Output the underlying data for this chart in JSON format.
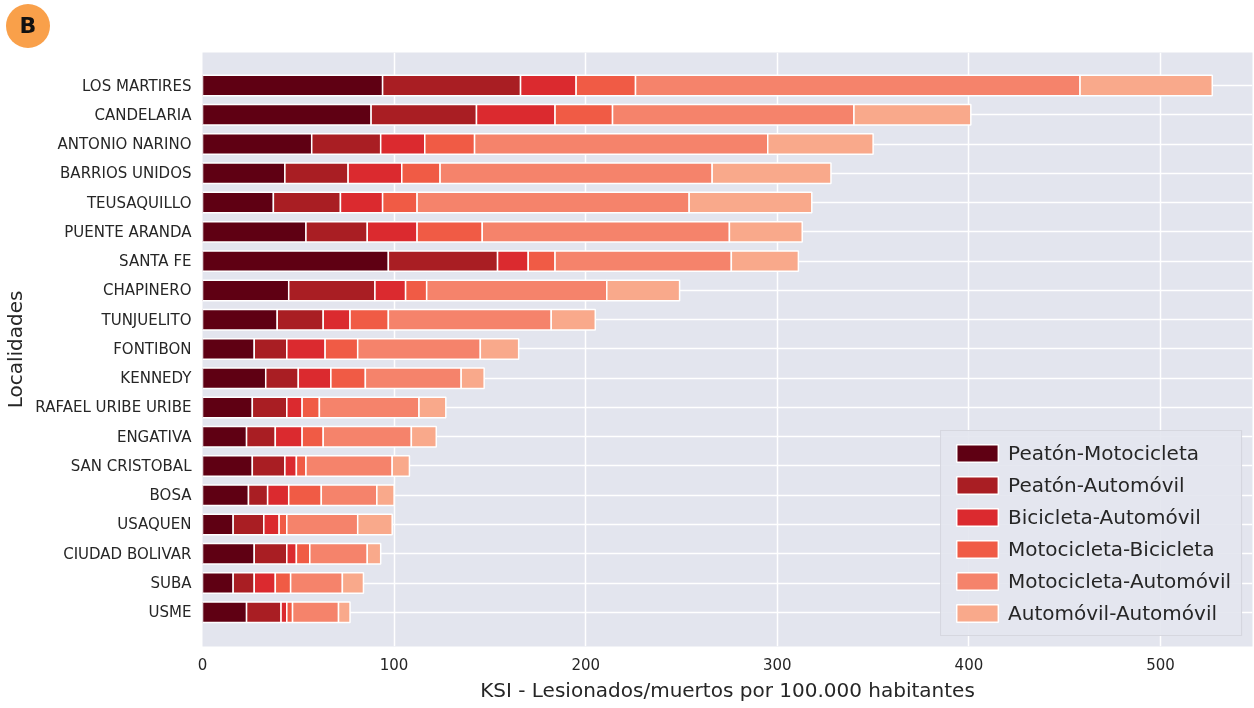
{
  "chart_data": {
    "type": "bar",
    "orientation": "horizontal",
    "stacked": true,
    "xlabel": "KSI - Lesionados/muertos por 100.000 habitantes",
    "ylabel": "Localidades",
    "annotations": [
      "B"
    ],
    "categories": [
      "LOS MARTIRES",
      "CANDELARIA",
      "ANTONIO NARINO",
      "BARRIOS UNIDOS",
      "TEUSAQUILLO",
      "PUENTE ARANDA",
      "SANTA FE",
      "CHAPINERO",
      "TUNJUELITO",
      "FONTIBON",
      "KENNEDY",
      "RAFAEL URIBE URIBE",
      "ENGATIVA",
      "SAN CRISTOBAL",
      "BOSA",
      "USAQUEN",
      "CIUDAD BOLIVAR",
      "SUBA",
      "USME"
    ],
    "series": [
      {
        "name": "Peatón-Motocicleta",
        "color": "#5f0013",
        "values": [
          94,
          88,
          57,
          43,
          37,
          54,
          97,
          45,
          39,
          27,
          33,
          26,
          23,
          26,
          24,
          16,
          27,
          16,
          23
        ]
      },
      {
        "name": "Peatón-Automóvil",
        "color": "#a91e23",
        "values": [
          72,
          55,
          36,
          33,
          35,
          32,
          57,
          45,
          24,
          17,
          17,
          18,
          15,
          17,
          10,
          16,
          17,
          11,
          18
        ]
      },
      {
        "name": "Bicicleta-Automóvil",
        "color": "#db2a2f",
        "values": [
          29,
          41,
          23,
          28,
          22,
          26,
          16,
          16,
          14,
          20,
          17,
          8,
          14,
          6,
          11,
          8,
          5,
          11,
          3
        ]
      },
      {
        "name": "Motocicleta-Bicicleta",
        "color": "#f05b45",
        "values": [
          31,
          30,
          26,
          20,
          18,
          34,
          14,
          11,
          20,
          17,
          18,
          9,
          11,
          5,
          17,
          4,
          7,
          8,
          3
        ]
      },
      {
        "name": "Motocicleta-Automóvil",
        "color": "#f5836b",
        "values": [
          232,
          126,
          153,
          142,
          142,
          129,
          92,
          94,
          85,
          64,
          50,
          52,
          46,
          45,
          29,
          37,
          30,
          27,
          24
        ]
      },
      {
        "name": "Automóvil-Automóvil",
        "color": "#f9a98b",
        "values": [
          69,
          61,
          55,
          62,
          64,
          38,
          35,
          38,
          23,
          20,
          12,
          14,
          13,
          9,
          9,
          18,
          7,
          11,
          6
        ]
      }
    ],
    "xlim": [
      0,
      548
    ],
    "xticks": [
      0,
      100,
      200,
      300,
      400,
      500
    ],
    "grid": true,
    "legend": "bottom right"
  }
}
